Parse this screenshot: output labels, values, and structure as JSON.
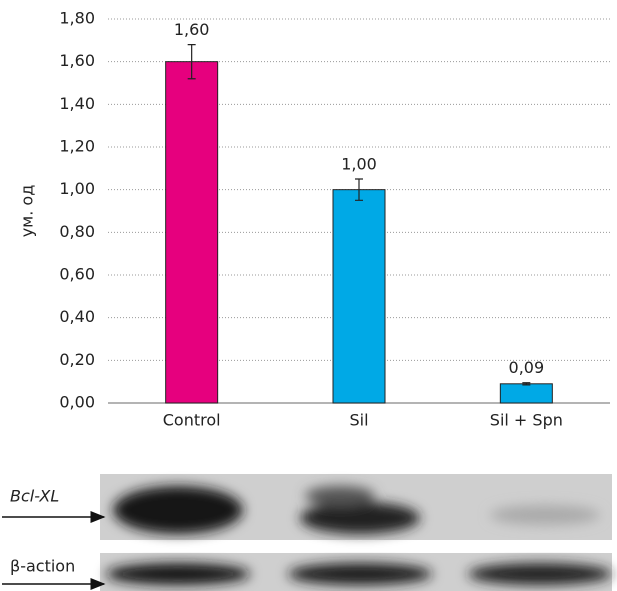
{
  "chart_data": {
    "type": "bar",
    "ylabel": "ум. од",
    "categories": [
      "Control",
      "Sil",
      "Sil + Spn"
    ],
    "values": [
      1.6,
      1.0,
      0.09
    ],
    "value_labels": [
      "1,60",
      "1,00",
      "0,09"
    ],
    "errors": [
      0.08,
      0.05,
      0.005
    ],
    "colors": [
      "#e6007e",
      "#00a9e6",
      "#00a9e6"
    ],
    "ylim": [
      0,
      1.8
    ],
    "yticks": [
      {
        "value": 0,
        "label": "0,00"
      },
      {
        "value": 0.2,
        "label": "0,20"
      },
      {
        "value": 0.4,
        "label": "0,40"
      },
      {
        "value": 0.6,
        "label": "0,60"
      },
      {
        "value": 0.8,
        "label": "0,80"
      },
      {
        "value": 1.0,
        "label": "1,00"
      },
      {
        "value": 1.2,
        "label": "1,20"
      },
      {
        "value": 1.4,
        "label": "1,40"
      },
      {
        "value": 1.6,
        "label": "1,60"
      },
      {
        "value": 1.8,
        "label": "1,80"
      }
    ],
    "grid": true
  },
  "blot": {
    "rows": [
      "Bcl-XL",
      "β-action"
    ]
  }
}
